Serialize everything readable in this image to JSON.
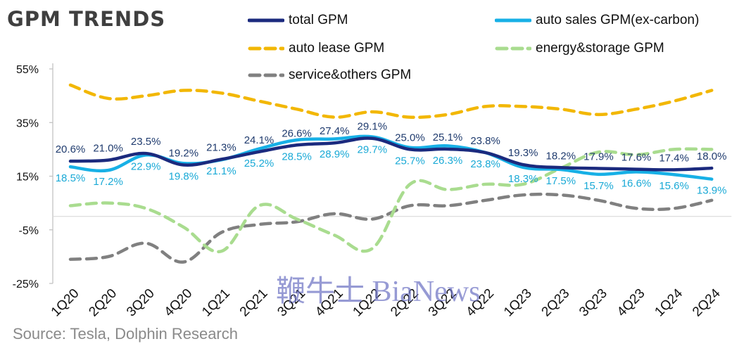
{
  "title": "GPM TRENDS",
  "source": "Source: Tesla,  Dolphin Research",
  "watermark": "鞭牛士 BiaNews",
  "chart_data": {
    "type": "line",
    "categories": [
      "1Q20",
      "2Q20",
      "3Q20",
      "4Q20",
      "1Q21",
      "2Q21",
      "3Q21",
      "4Q21",
      "1Q22",
      "2Q22",
      "3Q22",
      "4Q22",
      "1Q23",
      "2Q23",
      "3Q23",
      "4Q23",
      "1Q24",
      "2Q24"
    ],
    "y_ticks": [
      "55%",
      "35%",
      "15%",
      "-5%",
      "-25%"
    ],
    "ylim": [
      -25,
      55
    ],
    "grid": false,
    "legend_position": "top",
    "series": [
      {
        "name": "total GPM",
        "color": "#1b2a7e",
        "dash": "solid",
        "values": [
          20.6,
          21.0,
          23.5,
          19.2,
          21.3,
          24.1,
          26.6,
          27.4,
          29.1,
          25.0,
          25.1,
          23.8,
          19.3,
          18.2,
          17.9,
          17.6,
          17.4,
          18.0
        ],
        "labels": [
          "20.6%",
          "21.0%",
          "23.5%",
          "19.2%",
          "21.3%",
          "24.1%",
          "26.6%",
          "27.4%",
          "29.1%",
          "25.0%",
          "25.1%",
          "23.8%",
          "19.3%",
          "18.2%",
          "17.9%",
          "17.6%",
          "17.4%",
          "18.0%"
        ],
        "label_color": "#1f3b6e"
      },
      {
        "name": "auto sales GPM(ex-carbon)",
        "color": "#17b0e6",
        "dash": "solid",
        "values": [
          18.5,
          17.2,
          22.9,
          19.8,
          21.1,
          25.2,
          28.5,
          28.9,
          29.7,
          25.7,
          26.3,
          23.8,
          18.3,
          17.5,
          15.7,
          16.6,
          15.6,
          13.9
        ],
        "labels": [
          "18.5%",
          "17.2%",
          "22.9%",
          "19.8%",
          "21.1%",
          "25.2%",
          "28.5%",
          "28.9%",
          "29.7%",
          "25.7%",
          "26.3%",
          "23.8%",
          "18.3%",
          "17.5%",
          "15.7%",
          "16.6%",
          "15.6%",
          "13.9%"
        ],
        "label_color": "#19a9d6"
      },
      {
        "name": "auto lease GPM",
        "color": "#f2b705",
        "dash": "dashed",
        "values": [
          49,
          44,
          45,
          47,
          46,
          43,
          40,
          37,
          39,
          37,
          38,
          41,
          41,
          40,
          38,
          40,
          43,
          47
        ]
      },
      {
        "name": "energy&storage GPM",
        "color": "#a9dc8f",
        "dash": "dashed",
        "values": [
          4,
          5,
          3,
          -4,
          -13,
          4,
          -1,
          -7,
          -12,
          12,
          10,
          12,
          12,
          18,
          24,
          23,
          25,
          25
        ]
      },
      {
        "name": "service&others GPM",
        "color": "#808080",
        "dash": "dashed",
        "values": [
          -16,
          -15,
          -10,
          -17,
          -6,
          -3,
          -2,
          1,
          -1,
          4,
          4,
          6,
          8,
          8,
          6,
          3,
          3,
          6
        ]
      }
    ]
  }
}
